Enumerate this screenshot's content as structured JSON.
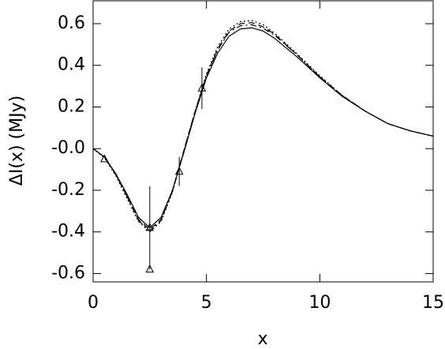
{
  "chart_data": {
    "type": "line",
    "xlabel": "x",
    "ylabel": "ΔI(x)  (MJy)",
    "xlim": [
      0,
      15
    ],
    "ylim": [
      -0.64,
      0.71
    ],
    "xticks": [
      0,
      5,
      10,
      15
    ],
    "yticks": [
      -0.6,
      -0.4,
      -0.2,
      {
        "value": 0,
        "label": "-0.0"
      },
      0.2,
      0.4,
      0.6
    ],
    "x": [
      0,
      0.5,
      1,
      1.5,
      2,
      2.5,
      3,
      3.5,
      4,
      4.5,
      5,
      5.5,
      6,
      6.5,
      7,
      7.5,
      8,
      9,
      10,
      11,
      12,
      13,
      14,
      15
    ],
    "series": [
      {
        "color": "#000000",
        "dash": "solid",
        "values": [
          0,
          -0.04,
          -0.12,
          -0.22,
          -0.33,
          -0.38,
          -0.33,
          -0.2,
          -0.02,
          0.17,
          0.34,
          0.46,
          0.54,
          0.575,
          0.58,
          0.565,
          0.53,
          0.44,
          0.34,
          0.25,
          0.18,
          0.12,
          0.085,
          0.06
        ]
      },
      {
        "color": "#000000",
        "dash": "dashed",
        "values": [
          0,
          -0.04,
          -0.125,
          -0.23,
          -0.34,
          -0.39,
          -0.34,
          -0.2,
          -0.01,
          0.18,
          0.35,
          0.48,
          0.565,
          0.6,
          0.605,
          0.585,
          0.55,
          0.45,
          0.345,
          0.255,
          0.18,
          0.12,
          0.085,
          0.06
        ]
      },
      {
        "color": "#000000",
        "dash": "dotted",
        "values": [
          0,
          -0.045,
          -0.13,
          -0.24,
          -0.35,
          -0.4,
          -0.35,
          -0.21,
          -0.01,
          0.18,
          0.36,
          0.49,
          0.575,
          0.61,
          0.615,
          0.595,
          0.555,
          0.455,
          0.35,
          0.255,
          0.18,
          0.12,
          0.085,
          0.06
        ]
      },
      {
        "color": "#000000",
        "dash": "dashdot",
        "values": [
          0,
          -0.04,
          -0.125,
          -0.23,
          -0.345,
          -0.395,
          -0.345,
          -0.205,
          -0.015,
          0.175,
          0.35,
          0.475,
          0.56,
          0.59,
          0.595,
          0.578,
          0.545,
          0.45,
          0.345,
          0.253,
          0.18,
          0.12,
          0.085,
          0.06
        ]
      }
    ],
    "points": {
      "color": "#000000",
      "x": [
        0.5,
        2.5,
        2.5,
        3.8,
        4.8
      ],
      "values": [
        -0.05,
        -0.38,
        -0.58,
        -0.11,
        0.29
      ],
      "errors": [
        0,
        0.2,
        0,
        0.07,
        0.1
      ]
    }
  }
}
